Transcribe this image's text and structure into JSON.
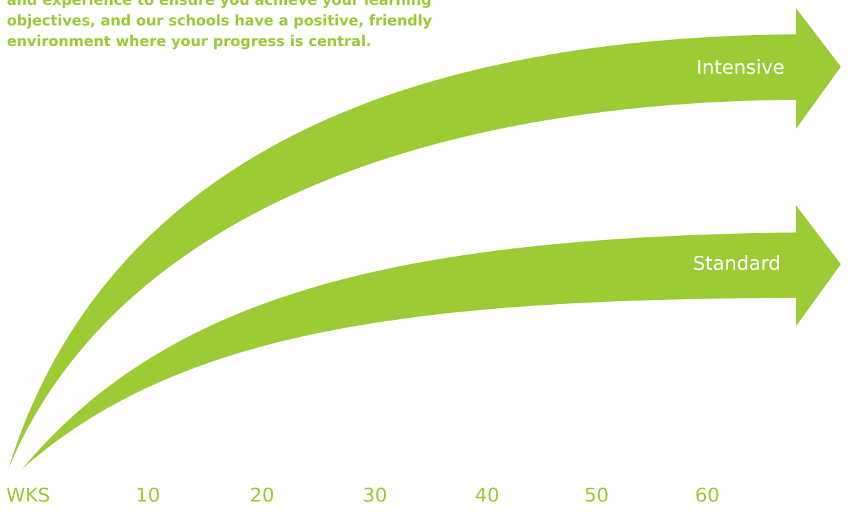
{
  "intro_lines": [
    "and experience to ensure you achieve your learning",
    "objectives, and our schools have a positive, friendly",
    "environment where your progress is central."
  ],
  "arrows": {
    "intensive": {
      "label": "Intensive"
    },
    "standard": {
      "label": "Standard"
    }
  },
  "axis": {
    "unit_label": "WKS",
    "ticks": [
      "10",
      "20",
      "30",
      "40",
      "50",
      "60"
    ]
  },
  "colors": {
    "accent": "#9ccb35",
    "label_text": "#ffffff",
    "background": "#ffffff"
  }
}
